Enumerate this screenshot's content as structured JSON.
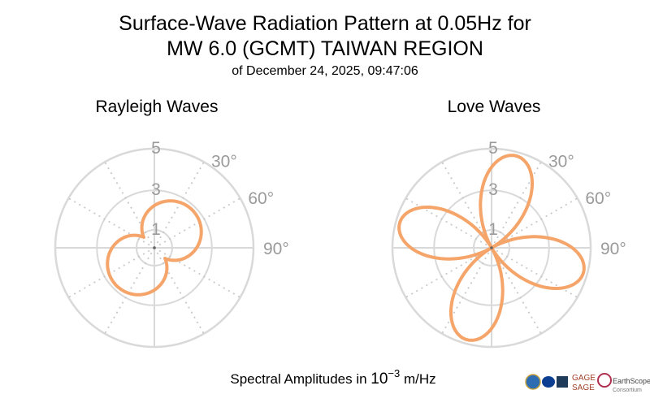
{
  "title_line1": "Surface-Wave Radiation Pattern at 0.05Hz for",
  "title_line2": "MW 6.0 (GCMT) TAIWAN REGION",
  "subtitle": "of December 24, 2025, 09:47:06",
  "caption_prefix": "Spectral Amplitudes in ",
  "caption_power_base": "10",
  "caption_power_exp": "−3",
  "caption_unit": " m/Hz",
  "colors": {
    "pattern": "#f5a46a",
    "grid_solid": "#d9d9d9",
    "grid_dotted": "#c8c8c8",
    "tick_text": "#9a9a9a"
  },
  "logos": {
    "gage": "GAGE",
    "sage": "SAGE",
    "earthscope": "EarthScope",
    "consortium": "Consortium"
  },
  "chart_data": [
    {
      "type": "polar",
      "title": "Rayleigh Waves",
      "radial_ticks": [
        1,
        3,
        5
      ],
      "radial_max": 5,
      "angle_ticks": [
        "30°",
        "60°",
        "90°"
      ],
      "pattern": {
        "shape": "two-lobe",
        "max_amplitude": 2.7,
        "lobe_azimuth_deg": 45
      }
    },
    {
      "type": "polar",
      "title": "Love Waves",
      "radial_ticks": [
        1,
        3,
        5
      ],
      "radial_max": 5,
      "angle_ticks": [
        "30°",
        "60°",
        "90°"
      ],
      "pattern": {
        "shape": "four-lobe",
        "max_amplitude": 4.8,
        "lobe_azimuth_deg": 15
      }
    }
  ]
}
